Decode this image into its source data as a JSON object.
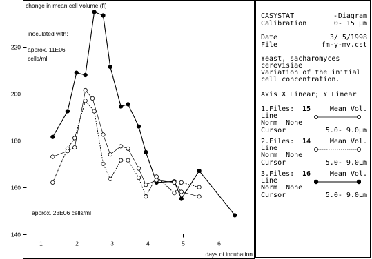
{
  "chart_data": {
    "type": "line",
    "title": "change in mean cell volume (fl)",
    "xlabel": "days of incubation",
    "ylabel": "",
    "xlim": [
      0.5,
      7.0
    ],
    "ylim": [
      140,
      240
    ],
    "x_ticks": [
      1,
      2,
      3,
      4,
      5,
      6
    ],
    "y_ticks": [
      140,
      160,
      180,
      200,
      220
    ],
    "grid": false,
    "annotations": [
      "inoculated with:",
      "approx. 11E06",
      "cells/ml",
      "approx. 23E06 cells/ml"
    ],
    "series": [
      {
        "style": "solid",
        "marker": "filled",
        "x": [
          1.33,
          1.75,
          2.0,
          2.25,
          2.5,
          2.75,
          2.95,
          3.25,
          3.45,
          3.75,
          3.95,
          4.25,
          4.75,
          4.95,
          5.45,
          6.45
        ],
        "y": [
          181.5,
          192.5,
          209,
          208,
          235,
          233.5,
          211.5,
          194.5,
          195.5,
          186,
          175,
          162,
          162.5,
          155,
          167,
          148
        ]
      },
      {
        "style": "dotted",
        "marker": "open",
        "x": [
          1.33,
          1.75,
          1.95,
          2.25,
          2.5,
          2.75,
          2.95,
          3.25,
          3.45,
          3.75,
          3.95,
          4.25,
          4.75,
          4.95,
          5.45
        ],
        "y": [
          162,
          176.5,
          181,
          197,
          192.5,
          170,
          163.5,
          171.5,
          171.5,
          164,
          156,
          164.5,
          157.5,
          162,
          160
        ]
      },
      {
        "style": "thin-solid",
        "marker": "open",
        "x": [
          1.33,
          1.75,
          1.95,
          2.25,
          2.45,
          2.75,
          2.95,
          3.25,
          3.45,
          3.75,
          3.95,
          4.25,
          4.75,
          4.95,
          5.45
        ],
        "y": [
          173,
          175.5,
          177,
          201.5,
          198,
          182.5,
          174,
          177.5,
          176.5,
          168,
          161,
          163,
          162,
          158,
          156
        ]
      }
    ]
  },
  "panel": {
    "app_name": "CASYSTAT",
    "dash": "-",
    "mode": "Diagram",
    "calibration_label": "Calibration",
    "calibration_value": "0- 15 µm",
    "date_label": "Date",
    "date_value": "3/ 5/1998",
    "file_label": "File",
    "file_value": "fm-y-mv.cst",
    "desc_line1": "Yeast, sacharomyces",
    "desc_line2": "cerevisiae",
    "desc_line3": "Variation of the initial",
    "desc_line4": "cell concentration.",
    "axis_info": "Axis X Linear; Y Linear",
    "files": [
      {
        "label": "1.Files:",
        "count": "15",
        "measure": "Mean Vol.",
        "line_label": "Line",
        "norm": "Norm  None",
        "cursor_label": "Cursor",
        "cursor_value": "5.0- 9.0µm"
      },
      {
        "label": "2.Files:",
        "count": "14",
        "measure": "Mean Vol.",
        "line_label": "Line",
        "norm": "Norm  None",
        "cursor_label": "Cursor",
        "cursor_value": "5.0- 9.0µm"
      },
      {
        "label": "3.Files:",
        "count": "16",
        "measure": "Mean Vol.",
        "line_label": "Line",
        "norm": "Norm  None",
        "cursor_label": "Cursor",
        "cursor_value": "5.0- 9.0µm"
      }
    ]
  }
}
